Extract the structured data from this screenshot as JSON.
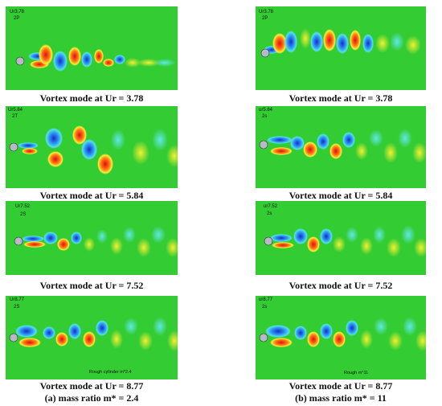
{
  "colors": {
    "field": "#33cc33",
    "positive": "#e8201c",
    "negative": "#1f33d6",
    "cylinder": "#b8b8c8"
  },
  "columns": [
    {
      "subcaption": "(a) mass ratio m* = 2.4",
      "panels": [
        {
          "ur_label": "Ur3.78",
          "mode_label": "2P",
          "caption": "Vortex mode at Ur = 3.78",
          "note": ""
        },
        {
          "ur_label": "Ur5.84",
          "mode_label": "2T",
          "caption": "Vortex mode at Ur = 5.84",
          "note": ""
        },
        {
          "ur_label": "Ur7.52",
          "mode_label": "2S",
          "caption": "Vortex mode at Ur = 7.52",
          "note": ""
        },
        {
          "ur_label": "Ur8.77",
          "mode_label": "2S",
          "caption": "Vortex mode at Ur = 8.77",
          "note": "Rough cylinder m*2.4"
        }
      ]
    },
    {
      "subcaption": "(b) mass ratio m* = 11",
      "panels": [
        {
          "ur_label": "Ur3.78",
          "mode_label": "2P",
          "caption": "Vortex mode at Ur = 3.78",
          "note": ""
        },
        {
          "ur_label": "ur5.84",
          "mode_label": "2s",
          "caption": "Vortex mode at Ur = 5.84",
          "note": ""
        },
        {
          "ur_label": "ur7.52",
          "mode_label": "2s",
          "caption": "Vortex mode at Ur = 7.52",
          "note": ""
        },
        {
          "ur_label": "ur8.77",
          "mode_label": "2s",
          "caption": "Vortex mode at Ur = 8.77",
          "note": "Rough m*11"
        }
      ]
    }
  ]
}
